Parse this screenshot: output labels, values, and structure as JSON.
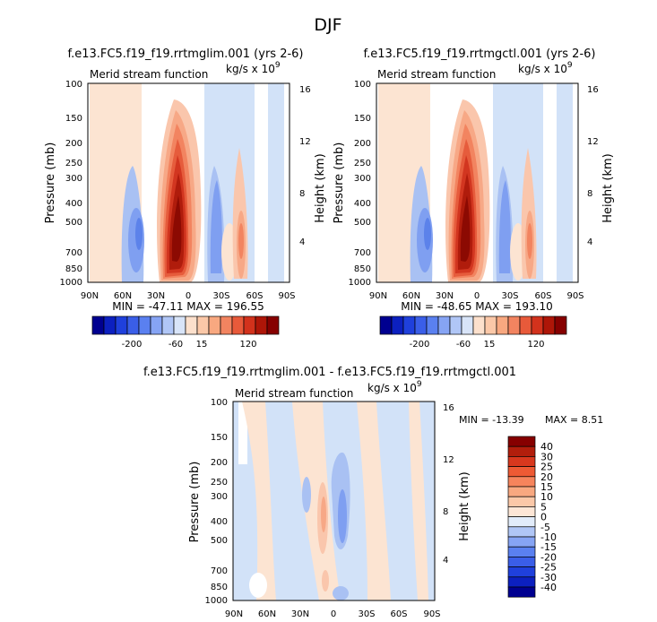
{
  "season": "DJF",
  "chart_data": [
    {
      "type": "heatmap",
      "id": "left",
      "title": "f.e13.FC5.f19_f19.rrtmglim.001 (yrs 2-6)",
      "subtitle": "Merid stream function",
      "units_main": "kg/s x 10",
      "units_exp": "9",
      "xlabel": "",
      "ylabel": "Pressure (mb)",
      "ylabel_right": "Height (km)",
      "x_ticks": [
        "90N",
        "60N",
        "30N",
        "0",
        "30S",
        "60S",
        "90S"
      ],
      "y_ticks": [
        "100",
        "150",
        "200",
        "250",
        "300",
        "400",
        "500",
        "700",
        "850",
        "1000"
      ],
      "right_ticks": [
        "16",
        "12",
        "8",
        "4"
      ],
      "stats": "MIN = -47.11   MAX = 196.55",
      "xlim": [
        90,
        -90
      ],
      "ylim": [
        1000,
        100
      ],
      "contour_levels": [
        -200,
        -60,
        15,
        120
      ]
    },
    {
      "type": "heatmap",
      "id": "right",
      "title": "f.e13.FC5.f19_f19.rrtmgctl.001 (yrs 2-6)",
      "subtitle": "Merid stream function",
      "units_main": "kg/s x 10",
      "units_exp": "9",
      "xlabel": "",
      "ylabel": "Pressure (mb)",
      "ylabel_right": "Height (km)",
      "x_ticks": [
        "90N",
        "60N",
        "30N",
        "0",
        "30S",
        "60S",
        "90S"
      ],
      "y_ticks": [
        "100",
        "150",
        "200",
        "250",
        "300",
        "400",
        "500",
        "700",
        "850",
        "1000"
      ],
      "right_ticks": [
        "16",
        "12",
        "8",
        "4"
      ],
      "stats": "MIN = -48.65   MAX = 193.10",
      "xlim": [
        90,
        -90
      ],
      "ylim": [
        1000,
        100
      ],
      "contour_levels": [
        -200,
        -60,
        15,
        120
      ]
    },
    {
      "type": "heatmap",
      "id": "diff",
      "title": "f.e13.FC5.f19_f19.rrtmglim.001 - f.e13.FC5.f19_f19.rrtmgctl.001",
      "subtitle": "Merid stream function",
      "units_main": "kg/s x 10",
      "units_exp": "9",
      "xlabel": "",
      "ylabel": "Pressure (mb)",
      "ylabel_right": "Height (km)",
      "x_ticks": [
        "90N",
        "60N",
        "30N",
        "0",
        "30S",
        "60S",
        "90S"
      ],
      "y_ticks": [
        "100",
        "150",
        "200",
        "250",
        "300",
        "400",
        "500",
        "700",
        "850",
        "1000"
      ],
      "right_ticks": [
        "16",
        "12",
        "8",
        "4"
      ],
      "stats_min": "MIN = -13.39",
      "stats_max": "MAX =   8.51",
      "xlim": [
        90,
        -90
      ],
      "ylim": [
        1000,
        100
      ],
      "contour_levels": [
        "40",
        "30",
        "25",
        "20",
        "15",
        "10",
        "5",
        "0",
        "-5",
        "-10",
        "-15",
        "-20",
        "-25",
        "-30",
        "-40"
      ]
    }
  ],
  "colorbar_top": {
    "labels": [
      "-200",
      "-60",
      "15",
      "120"
    ],
    "colors": [
      "#000090",
      "#0c20c0",
      "#1f40dc",
      "#3a5ee8",
      "#5a80f0",
      "#86a4f4",
      "#b0c6f6",
      "#d8e4f8",
      "#fce0cc",
      "#fbc8a8",
      "#f8a880",
      "#f28460",
      "#e85a3a",
      "#d2321c",
      "#ae1608",
      "#860000"
    ]
  },
  "colorbar_diff": {
    "labels": [
      "40",
      "30",
      "25",
      "20",
      "15",
      "10",
      "5",
      "0",
      "-5",
      "-10",
      "-15",
      "-20",
      "-25",
      "-30",
      "-40"
    ],
    "colors": [
      "#860000",
      "#b21e0c",
      "#d8381e",
      "#ee5a34",
      "#f6845c",
      "#f8a880",
      "#fbc8a8",
      "#fde6d6",
      "#e2ecfa",
      "#b0c6f6",
      "#86a4f4",
      "#5a80f0",
      "#3a5ee8",
      "#1f40dc",
      "#0c20c0",
      "#000090"
    ]
  },
  "field_colors": {
    "neg_light": "#d2e2f8",
    "neg_mid": "#a9c1f3",
    "neg_strong": "#7f9ff1",
    "neg_deep": "#5c82ea",
    "pos_light": "#fce4d2",
    "pos_1": "#fac6ac",
    "pos_2": "#f7a886",
    "pos_3": "#f28460",
    "pos_4": "#e65c3c",
    "pos_5": "#d23620",
    "pos_6": "#b01c0c",
    "pos_7": "#8c0a02"
  }
}
